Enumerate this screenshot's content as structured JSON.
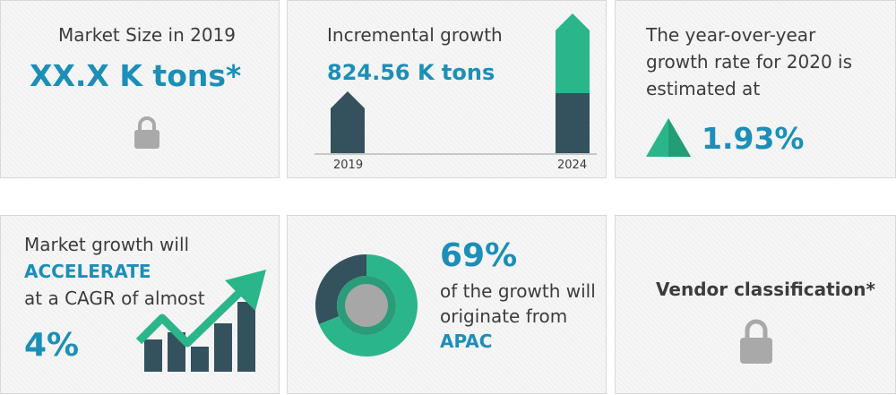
{
  "market_size": {
    "label": "Market Size in 2019",
    "value": "XX.X K tons*"
  },
  "incremental": {
    "label": "Incremental growth",
    "value": "824.56 K tons",
    "year_start": "2019",
    "year_end": "2024"
  },
  "yoy": {
    "line1": "The year-over-year",
    "line2": "growth rate for 2020 is",
    "line3": "estimated at",
    "value": "1.93%"
  },
  "cagr": {
    "line1": "Market growth will",
    "line2": "ACCELERATE",
    "line3": "at a CAGR of almost",
    "value": "4%"
  },
  "region": {
    "value": "69%",
    "line1": "of the growth will",
    "line2": "originate from",
    "region": "APAC",
    "share": 0.69
  },
  "vendor": {
    "label": "Vendor classification*"
  },
  "colors": {
    "accent_blue": "#1b8fb7",
    "teal": "#2bb58a",
    "navy": "#34515e",
    "lock_gray": "#a9a9a9"
  },
  "icons": {
    "lock": "lock-icon",
    "triangle": "up-triangle-icon",
    "growth_arrow": "growth-arrow-icon",
    "donut": "donut-chart-icon"
  }
}
